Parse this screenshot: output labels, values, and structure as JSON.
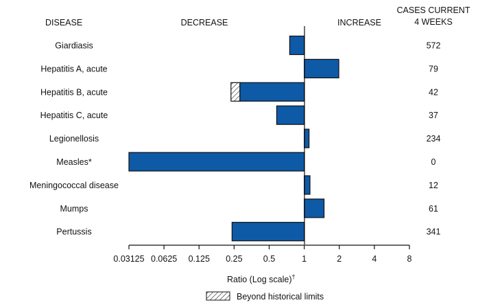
{
  "chart_data": {
    "type": "bar",
    "orientation": "horizontal",
    "scale": "log2",
    "headers": {
      "disease": "DISEASE",
      "decrease": "DECREASE",
      "increase": "INCREASE",
      "cases_line1": "CASES CURRENT",
      "cases_line2": "4 WEEKS"
    },
    "categories": [
      "Giardiasis",
      "Hepatitis A, acute",
      "Hepatitis B, acute",
      "Hepatitis C, acute",
      "Legionellosis",
      "Measles*",
      "Meningococcal disease",
      "Mumps",
      "Pertussis"
    ],
    "values": [
      0.75,
      1.98,
      0.28,
      0.58,
      1.1,
      0.03125,
      1.12,
      1.48,
      0.24
    ],
    "beyond_historical_limits_to": [
      null,
      null,
      0.235,
      null,
      null,
      null,
      null,
      null,
      null
    ],
    "cases_current_4_weeks": [
      "572",
      "79",
      "42",
      "37",
      "234",
      "0",
      "12",
      "61",
      "341"
    ],
    "xticks": [
      0.03125,
      0.0625,
      0.125,
      0.25,
      0.5,
      1,
      2,
      4,
      8
    ],
    "xtick_labels": [
      "0.03125",
      "0.0625",
      "0.125",
      "0.25",
      "0.5",
      "1",
      "2",
      "4",
      "8"
    ],
    "xlim": [
      0.03125,
      8
    ],
    "xlabel": "Ratio (Log scale)",
    "xlabel_mark": "†",
    "legend": "Beyond historical limits",
    "colors": {
      "bar": "#0e5aa7",
      "outline": "#111111",
      "hatch": "#555555"
    }
  }
}
